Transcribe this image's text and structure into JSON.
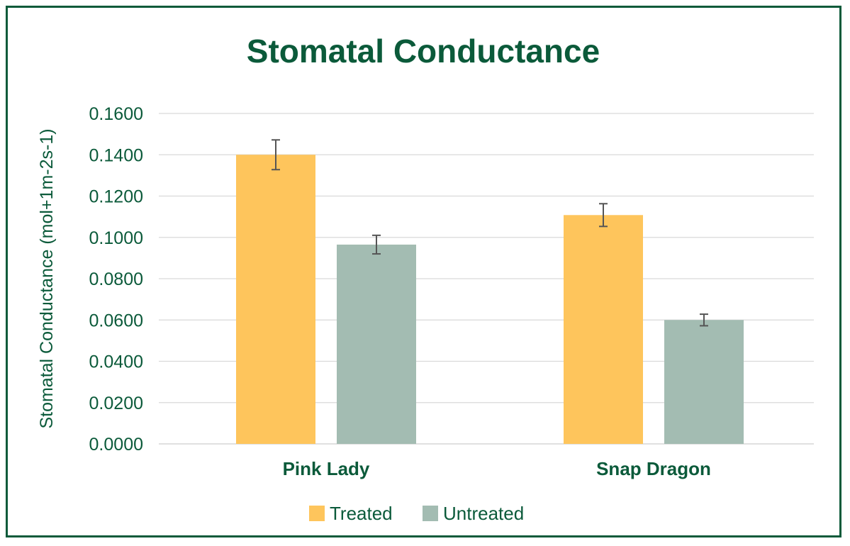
{
  "chart_data": {
    "type": "bar",
    "title": "Stomatal Conductance",
    "ylabel": "Stomatal Conductance (mol+1m-2s-1)",
    "xlabel": "",
    "categories": [
      "Pink Lady",
      "Snap Dragon"
    ],
    "series": [
      {
        "name": "Treated",
        "color": "#fec55c",
        "values": [
          0.14,
          0.1108
        ],
        "error": [
          0.0072,
          0.0055
        ]
      },
      {
        "name": "Untreated",
        "color": "#a3bcb2",
        "values": [
          0.0965,
          0.06
        ],
        "error": [
          0.0045,
          0.0028
        ]
      }
    ],
    "ylim": [
      0,
      0.16
    ],
    "yticks": [
      "0.0000",
      "0.0200",
      "0.0400",
      "0.0600",
      "0.0800",
      "0.1000",
      "0.1200",
      "0.1400",
      "0.1600"
    ],
    "grid": true,
    "legend_position": "bottom",
    "error_bar_color": "#555555",
    "grid_color": "#d9d9d9",
    "text_color": "#0b5a3a"
  }
}
